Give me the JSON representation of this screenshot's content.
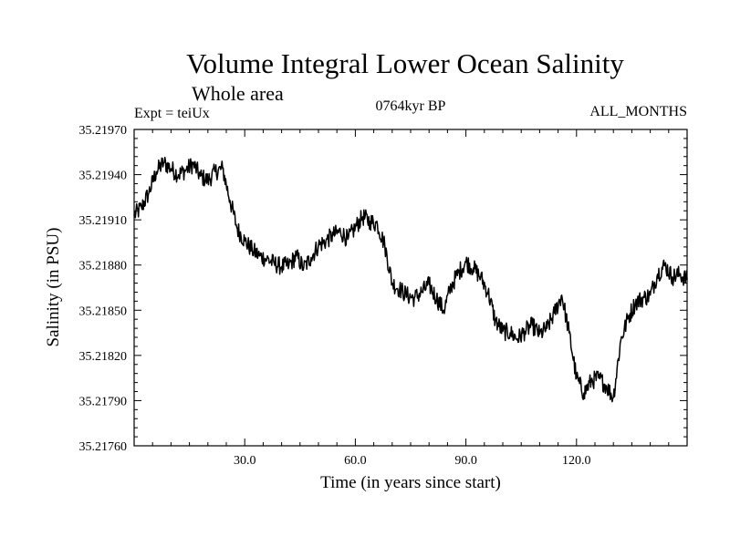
{
  "header": {
    "title": "Volume Integral Lower Ocean Salinity",
    "subtitle": "Whole area",
    "experiment": "Expt = teiUx",
    "period": "0764kyr BP",
    "months": "ALL_MONTHS"
  },
  "colors": {
    "line": "#000000",
    "background": "#ffffff"
  },
  "chart_data": {
    "type": "line",
    "title": "Volume Integral Lower Ocean Salinity",
    "subtitle": "Whole area",
    "xlabel": "Time (in years since start)",
    "ylabel": "Salinity (in PSU)",
    "xlim": [
      0,
      150
    ],
    "ylim": [
      35.2176,
      35.2197
    ],
    "x_ticks": [
      30,
      60,
      90,
      120
    ],
    "x_tick_labels": [
      "30.0",
      "60.0",
      "90.0",
      "120.0"
    ],
    "y_ticks": [
      35.2176,
      35.2179,
      35.2182,
      35.2185,
      35.2188,
      35.2191,
      35.2194,
      35.2197
    ],
    "y_tick_labels": [
      "35.21760",
      "35.21790",
      "35.21820",
      "35.21850",
      "35.21880",
      "35.21910",
      "35.21940",
      "35.21970"
    ],
    "grid": false,
    "series": [
      {
        "name": "salinity",
        "x": [
          0,
          2,
          4,
          6,
          8,
          10,
          12,
          14,
          16,
          18,
          20,
          22,
          24,
          26,
          28,
          30,
          32,
          34,
          36,
          38,
          40,
          42,
          44,
          46,
          48,
          50,
          52,
          54,
          56,
          58,
          60,
          62,
          64,
          66,
          68,
          70,
          72,
          74,
          76,
          78,
          80,
          82,
          84,
          86,
          88,
          90,
          92,
          94,
          96,
          98,
          100,
          102,
          104,
          106,
          108,
          110,
          112,
          114,
          116,
          118,
          120,
          122,
          124,
          126,
          128,
          130,
          132,
          134,
          136,
          138,
          140,
          142,
          144,
          146,
          148,
          150
        ],
        "values": [
          35.21913,
          35.21918,
          35.21928,
          35.21942,
          35.21948,
          35.21944,
          35.2194,
          35.21943,
          35.21947,
          35.21939,
          35.21936,
          35.21942,
          35.21944,
          35.21923,
          35.21904,
          35.21896,
          35.2189,
          35.21886,
          35.21884,
          35.21881,
          35.21879,
          35.2188,
          35.21886,
          35.21878,
          35.21885,
          35.21893,
          35.21896,
          35.219,
          35.21902,
          35.21897,
          35.21905,
          35.21912,
          35.21909,
          35.21907,
          35.21893,
          35.21868,
          35.21864,
          35.2186,
          35.21858,
          35.21862,
          35.21867,
          35.21858,
          35.2185,
          35.21866,
          35.21875,
          35.21882,
          35.21878,
          35.21872,
          35.21862,
          35.21843,
          35.21836,
          35.21835,
          35.21831,
          35.21836,
          35.2184,
          35.21834,
          35.21838,
          35.21848,
          35.2186,
          35.21835,
          35.21805,
          35.21795,
          35.21803,
          35.21805,
          35.218,
          35.21792,
          35.2183,
          35.21845,
          35.21855,
          35.21858,
          35.2186,
          35.21874,
          35.2188,
          35.21872,
          35.21874,
          35.2187
        ]
      }
    ]
  }
}
